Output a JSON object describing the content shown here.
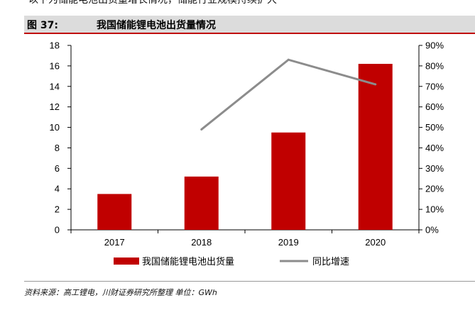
{
  "header_fragment": "以下为储能电池出货量增长情况，储能行业规模持续扩大",
  "figure": {
    "number": "图 37:",
    "title": "我国储能锂电池出货量情况",
    "source": "资料来源：高工锂电，川财证券研究所整理 单位：GWh"
  },
  "colors": {
    "bar": "#c00000",
    "line": "#8c8c8c",
    "title_rule": "#c00000",
    "title_bg": "#dcdcdc"
  },
  "chart_data": {
    "type": "bar",
    "title": "我国储能锂电池出货量情况",
    "categories": [
      "2017",
      "2018",
      "2019",
      "2020"
    ],
    "series": [
      {
        "name": "我国储能锂电池出货量",
        "type": "bar",
        "axis": "left",
        "values": [
          3.5,
          5.2,
          9.5,
          16.2
        ]
      },
      {
        "name": "同比增速",
        "type": "line",
        "axis": "right",
        "values": [
          null,
          0.49,
          0.83,
          0.71
        ]
      }
    ],
    "ylim": [
      0,
      18
    ],
    "y_ticks": [
      "0",
      "2",
      "4",
      "6",
      "8",
      "10",
      "12",
      "14",
      "16",
      "18"
    ],
    "y2lim": [
      0,
      0.9
    ],
    "y2_ticks": [
      "0%",
      "10%",
      "20%",
      "30%",
      "40%",
      "50%",
      "60%",
      "70%",
      "80%",
      "90%"
    ],
    "legend": [
      "我国储能锂电池出货量",
      "同比增速"
    ],
    "legend_position": "bottom",
    "grid": false
  }
}
